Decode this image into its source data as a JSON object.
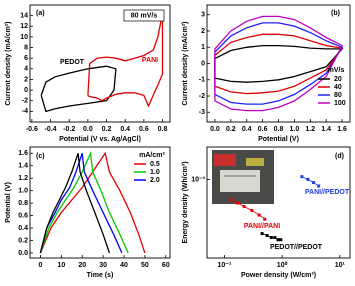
{
  "chart_data": [
    {
      "type": "line",
      "panel_label": "(a)",
      "annotation": "80 mV/s",
      "xlabel": "Potential (V vs. Ag/AgCl)",
      "ylabel": "Current density (mA/cm²)",
      "xlim": [
        -0.62,
        0.88
      ],
      "xticks": [
        -0.6,
        -0.4,
        -0.2,
        {
          "value": 0,
          "label": "0.0"
        },
        0.2,
        0.4,
        0.6,
        0.8
      ],
      "ylim": [
        -6,
        16
      ],
      "yticks": [
        -4,
        -2,
        0,
        2,
        4,
        6,
        8,
        10,
        12,
        14
      ],
      "series": [
        {
          "name": "PEDOT",
          "color": "#000000",
          "x": [
            -0.5,
            -0.45,
            -0.35,
            -0.2,
            0,
            0.2,
            0.3,
            0.28,
            0.2,
            0,
            -0.2,
            -0.35,
            -0.45,
            -0.5
          ],
          "values": [
            -1,
            1.5,
            2.5,
            3.2,
            4,
            4.5,
            4,
            0,
            -2,
            -2.5,
            -3,
            -3.5,
            -4,
            -1
          ]
        },
        {
          "name": "PANI",
          "color": "#e00000",
          "x": [
            0,
            0.02,
            0.1,
            0.2,
            0.3,
            0.4,
            0.5,
            0.6,
            0.7,
            0.75,
            0.8,
            0.8,
            0.75,
            0.7,
            0.65,
            0.6,
            0.5,
            0.4,
            0.3,
            0.2,
            0.15,
            0.1,
            0.02,
            0
          ],
          "values": [
            -1,
            5,
            6,
            6.2,
            6,
            5.5,
            6,
            6.5,
            7.5,
            10,
            14.5,
            3,
            1,
            -1,
            -3,
            -1,
            -0.5,
            -0.5,
            -0.8,
            -1.5,
            -2,
            -1.5,
            -1.2,
            -1
          ]
        }
      ]
    },
    {
      "type": "line",
      "panel_label": "(b)",
      "legend_title": "mV/s",
      "xlabel": "Potential (V)",
      "ylabel": "Current density (mA/cm²)",
      "xlim": [
        -0.1,
        1.7
      ],
      "xticks": [
        {
          "value": 0,
          "label": "0.0"
        },
        0.2,
        0.4,
        0.6,
        0.8,
        {
          "value": 1,
          "label": "1.0"
        },
        1.2,
        1.4,
        1.6
      ],
      "ylim": [
        -3.6,
        3.6
      ],
      "yticks": [
        -3,
        -2,
        -1,
        0,
        1,
        2,
        3
      ],
      "series": [
        {
          "name": "20",
          "color": "#000000",
          "x": [
            0,
            0.2,
            0.4,
            0.6,
            0.8,
            1,
            1.2,
            1.4,
            1.6,
            1.4,
            1.2,
            1,
            0.8,
            0.6,
            0.4,
            0.2,
            0,
            0
          ],
          "values": [
            0.3,
            0.8,
            1.0,
            1.1,
            1.1,
            1.05,
            0.95,
            0.9,
            0.9,
            -0.2,
            -0.5,
            -0.8,
            -1.0,
            -1.1,
            -1.15,
            -1.1,
            -0.9,
            0.3
          ]
        },
        {
          "name": "40",
          "color": "#e00000",
          "x": [
            0,
            0.2,
            0.4,
            0.6,
            0.8,
            1,
            1.2,
            1.4,
            1.6,
            1.4,
            1.2,
            1,
            0.8,
            0.6,
            0.4,
            0.2,
            0,
            0
          ],
          "values": [
            0.5,
            1.3,
            1.6,
            1.8,
            1.8,
            1.7,
            1.4,
            1.1,
            0.95,
            -0.4,
            -0.9,
            -1.4,
            -1.7,
            -1.8,
            -1.85,
            -1.75,
            -1.4,
            0.5
          ]
        },
        {
          "name": "80",
          "color": "#2020ff",
          "x": [
            0,
            0.2,
            0.4,
            0.6,
            0.8,
            1,
            1.2,
            1.4,
            1.6,
            1.4,
            1.2,
            1,
            0.8,
            0.6,
            0.4,
            0.2,
            0,
            0
          ],
          "values": [
            0.7,
            1.7,
            2.2,
            2.5,
            2.5,
            2.3,
            1.9,
            1.4,
            1.0,
            -0.6,
            -1.3,
            -1.9,
            -2.3,
            -2.5,
            -2.5,
            -2.4,
            -1.9,
            0.7
          ]
        },
        {
          "name": "100",
          "color": "#c000c0",
          "x": [
            0,
            0.2,
            0.4,
            0.6,
            0.8,
            1,
            1.2,
            1.4,
            1.6,
            1.4,
            1.2,
            1,
            0.8,
            0.6,
            0.4,
            0.2,
            0,
            0
          ],
          "values": [
            0.9,
            2.0,
            2.6,
            2.9,
            2.9,
            2.7,
            2.2,
            1.6,
            1.1,
            -0.8,
            -1.6,
            -2.3,
            -2.7,
            -2.9,
            -2.9,
            -2.8,
            -2.3,
            0.9
          ]
        }
      ]
    },
    {
      "type": "line",
      "panel_label": "(c)",
      "legend_title": "mA/cm²",
      "xlabel": "Time (s)",
      "ylabel": "Potential (V)",
      "xlim": [
        -5,
        62
      ],
      "xticks": [
        0,
        10,
        20,
        30,
        40,
        50,
        60
      ],
      "ylim": [
        -0.08,
        1.7
      ],
      "yticks": [
        {
          "value": 0,
          "label": "0.0"
        },
        0.2,
        0.4,
        0.6,
        0.8,
        {
          "value": 1,
          "label": "1.0"
        },
        1.2,
        1.4,
        1.6
      ],
      "series": [
        {
          "name": "0.5",
          "color": "#e00000",
          "x": [
            0,
            5,
            10,
            15,
            20,
            25,
            31,
            33,
            38,
            43,
            47,
            50
          ],
          "values": [
            0,
            0.4,
            0.65,
            0.85,
            1.05,
            1.3,
            1.6,
            1.3,
            1.0,
            0.65,
            0.3,
            0
          ]
        },
        {
          "name": "1.0",
          "color": "#00cc00",
          "x": [
            0,
            4,
            8,
            12,
            16,
            20,
            24,
            25,
            29,
            33,
            38,
            42
          ],
          "values": [
            0,
            0.4,
            0.65,
            0.85,
            1.05,
            1.3,
            1.6,
            1.3,
            1.0,
            0.65,
            0.3,
            0
          ]
        },
        {
          "name": "2.0",
          "color": "#0000ff",
          "x": [
            0,
            3,
            7,
            10,
            14,
            17,
            20,
            21,
            25,
            30,
            35,
            39
          ],
          "values": [
            0,
            0.4,
            0.65,
            0.85,
            1.05,
            1.3,
            1.6,
            1.3,
            1.0,
            0.65,
            0.3,
            0
          ]
        },
        {
          "color": "#000000",
          "x": [
            0,
            3,
            6,
            9,
            12,
            15,
            18,
            19,
            22,
            26,
            30,
            33
          ],
          "values": [
            0,
            0.4,
            0.65,
            0.85,
            1.05,
            1.3,
            1.6,
            1.3,
            1.0,
            0.65,
            0.3,
            0
          ]
        }
      ]
    },
    {
      "type": "scatter",
      "panel_label": "(d)",
      "xlog": true,
      "ylog": true,
      "xlabel": "Power density (W/cm³)",
      "ylabel": "Energy density (Wh/cm³)",
      "xlim": [
        0.05,
        15
      ],
      "xticks": [
        {
          "value": 0.1,
          "label": "10⁻¹"
        },
        {
          "value": 1,
          "label": "10⁰"
        },
        {
          "value": 10,
          "label": "10¹"
        }
      ],
      "ylim": [
        7e-05,
        0.003
      ],
      "yticks": [
        {
          "value": 0.001,
          "label": "10⁻³"
        }
      ],
      "series": [
        {
          "name": "PANI//PEDOT",
          "color": "#2040e0",
          "x": [
            2.2,
            2.8,
            3.5,
            4.3
          ],
          "values": [
            0.0011,
            0.001,
            0.0009,
            0.0008
          ]
        },
        {
          "name": "PANI//PANI",
          "color": "#e00000",
          "x": [
            0.13,
            0.17,
            0.22,
            0.3,
            0.4,
            0.5
          ],
          "values": [
            0.0005,
            0.00045,
            0.0004,
            0.00035,
            0.0003,
            0.00026
          ]
        },
        {
          "name": "PEDOT//PEDOT",
          "color": "#000000",
          "x": [
            0.45,
            0.55,
            0.65,
            0.75,
            0.85,
            0.95
          ],
          "values": [
            0.00016,
            0.00015,
            0.00014,
            0.00014,
            0.00013,
            0.00013
          ]
        }
      ]
    }
  ]
}
